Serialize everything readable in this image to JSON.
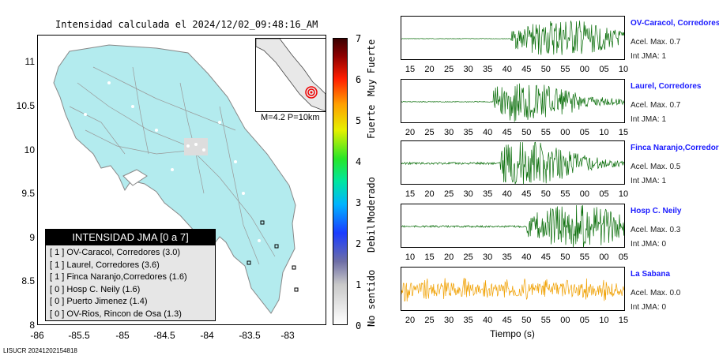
{
  "map": {
    "title": "Intensidad calculada el 2024/12/02_09:48:16_AM",
    "y_ticks": [
      "11",
      "10.5",
      "10",
      "9.5",
      "9",
      "8.5",
      "8"
    ],
    "x_ticks": [
      "-86",
      "-85.5",
      "-85",
      "-84.5",
      "-84",
      "-83.5",
      "-83"
    ],
    "inset_caption": "M=4.2 P=10km",
    "land_color": "#b3ebee"
  },
  "legend": {
    "title": "INTENSIDAD JMA [0 a 7]",
    "items": [
      "[ 1 ]  OV-Caracol, Corredores (3.0)",
      "[ 1 ]  Laurel, Corredores (3.6)",
      "[ 1 ]  Finca Naranjo,Corredores (1.6)",
      "[ 0 ]  Hosp C. Neily (1.6)",
      "[ 0 ]  Puerto Jimenez (1.4)",
      "[ 0 ]  OV-Rios, Rincon de Osa (1.3)"
    ]
  },
  "colorbar": {
    "ticks": [
      "7",
      "6",
      "5",
      "4",
      "3",
      "2",
      "1",
      "0"
    ],
    "labels": [
      "Muy Fuerte",
      "Fuerte",
      "Moderado",
      "Debil",
      "No sentido"
    ]
  },
  "footer": "LISUCR 20241202154818",
  "stations": [
    {
      "name": "OV-Caracol, Corredores",
      "acel": "Acel. Max. 0.7",
      "int": "Int JMA: 1",
      "color": "#0a6e0a",
      "ticks": [
        "15",
        "20",
        "25",
        "30",
        "35",
        "40",
        "45",
        "50",
        "55",
        "00",
        "05",
        "10"
      ]
    },
    {
      "name": "Laurel, Corredores",
      "acel": "Acel. Max. 0.7",
      "int": "Int JMA: 1",
      "color": "#0a6e0a",
      "ticks": [
        "20",
        "25",
        "30",
        "35",
        "40",
        "45",
        "50",
        "55",
        "00",
        "05",
        "10",
        "15"
      ]
    },
    {
      "name": "Finca Naranjo,Corredores",
      "acel": "Acel. Max. 0.5",
      "int": "Int JMA: 1",
      "color": "#0a6e0a",
      "ticks": [
        "15",
        "20",
        "25",
        "30",
        "35",
        "40",
        "45",
        "50",
        "55",
        "00",
        "05",
        "10"
      ]
    },
    {
      "name": "Hosp C. Neily",
      "acel": "Acel. Max. 0.3",
      "int": "Int JMA: 0",
      "color": "#0a6e0a",
      "ticks": [
        "10",
        "15",
        "20",
        "25",
        "30",
        "35",
        "40",
        "45",
        "50",
        "55",
        "00",
        "05"
      ]
    },
    {
      "name": "La Sabana",
      "acel": "Acel. Max. 0.0",
      "int": "Int JMA: 0",
      "color": "#f0a000",
      "ticks": [
        "20",
        "25",
        "30",
        "35",
        "40",
        "45",
        "50",
        "55",
        "00",
        "05",
        "10",
        "15"
      ]
    }
  ],
  "time_axis_label": "Tiempo (s)"
}
